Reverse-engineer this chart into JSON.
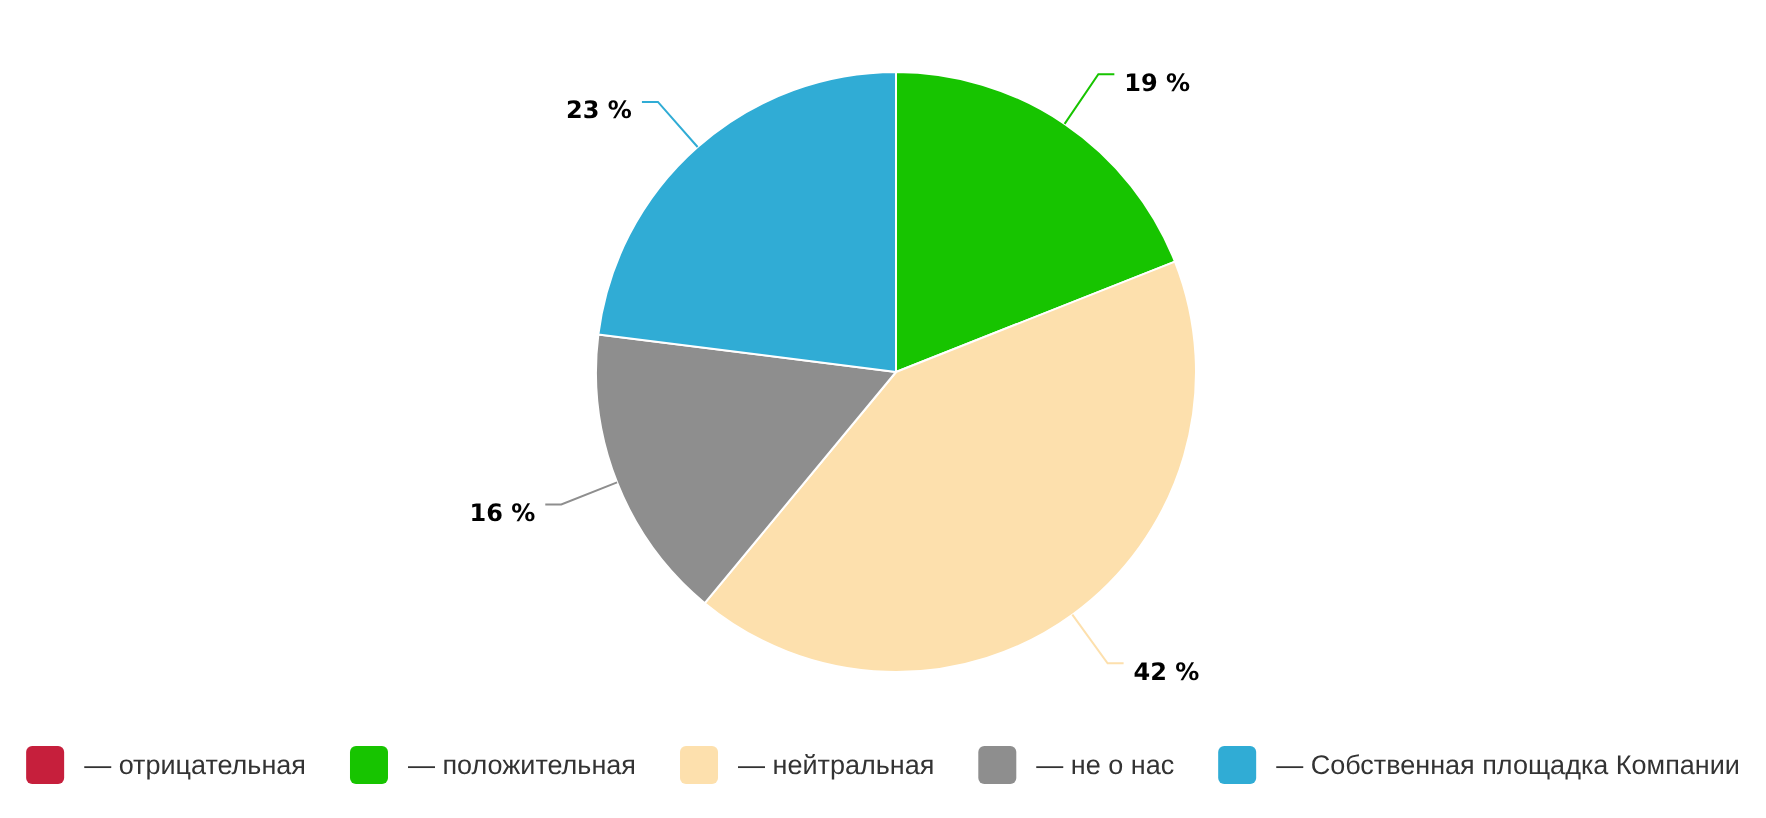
{
  "chart_data": {
    "type": "pie",
    "categories": [
      "— отрицательная",
      "— положительная",
      "— нейтральная",
      "— не о нас",
      "— Собственная площадка Компании"
    ],
    "values": [
      0,
      19,
      42,
      16,
      23
    ],
    "colors": [
      "#c61f3c",
      "#17c400",
      "#fde0ad",
      "#8e8e8e",
      "#30acd5"
    ],
    "value_labels": [
      null,
      "19 %",
      "42 %",
      "16 %",
      "23 %"
    ],
    "legend": "bottom"
  }
}
